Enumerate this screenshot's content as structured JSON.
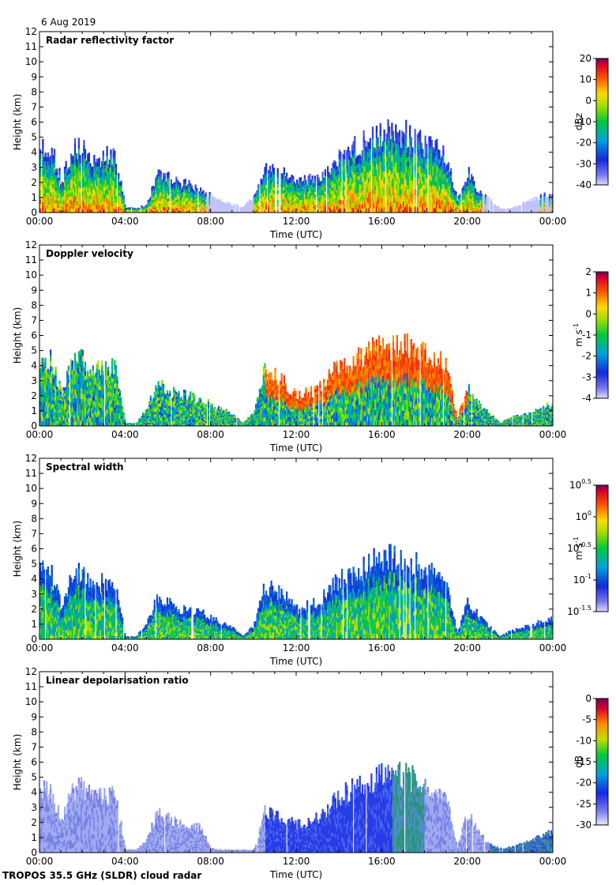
{
  "date_label": "6 Aug 2019",
  "footer_label": "TROPOS 35.5 GHz (SLDR) cloud radar",
  "chart_data": [
    {
      "type": "heatmap",
      "title": "Radar reflectivity factor",
      "xlabel": "Time (UTC)",
      "ylabel": "Height (km)",
      "xticks": [
        "00:00",
        "04:00",
        "08:00",
        "12:00",
        "16:00",
        "20:00",
        "00:00"
      ],
      "yticks": [
        "0",
        "1",
        "2",
        "3",
        "4",
        "5",
        "6",
        "7",
        "8",
        "9",
        "10",
        "11",
        "12"
      ],
      "xlim_hours": [
        0,
        24
      ],
      "ylim_km": [
        0,
        12
      ],
      "colorbar": {
        "unit": "dBz",
        "ticks": [
          "20",
          "10",
          "0",
          "-10",
          "-20",
          "-30",
          "-40"
        ]
      },
      "cloud_tops_km": [
        [
          0,
          4.8
        ],
        [
          0.5,
          4.7
        ],
        [
          1,
          2.2
        ],
        [
          1.5,
          4.5
        ],
        [
          2,
          4.6
        ],
        [
          2.5,
          3.8
        ],
        [
          3,
          4.0
        ],
        [
          3.5,
          4.3
        ],
        [
          4,
          0.4
        ],
        [
          4.5,
          0.3
        ],
        [
          5,
          0.6
        ],
        [
          5.5,
          2.9
        ],
        [
          6,
          2.6
        ],
        [
          6.5,
          2.1
        ],
        [
          7,
          2.0
        ],
        [
          7.5,
          1.6
        ],
        [
          8,
          1.2
        ],
        [
          8.5,
          0.9
        ],
        [
          9,
          0.6
        ],
        [
          9.5,
          0.4
        ],
        [
          10,
          1.2
        ],
        [
          10.5,
          3.1
        ],
        [
          11,
          2.9
        ],
        [
          11.5,
          2.8
        ],
        [
          12,
          2.2
        ],
        [
          12.5,
          2.4
        ],
        [
          13,
          2.3
        ],
        [
          13.5,
          3.0
        ],
        [
          14,
          4.0
        ],
        [
          14.5,
          4.6
        ],
        [
          15,
          4.9
        ],
        [
          15.5,
          5.4
        ],
        [
          16,
          5.6
        ],
        [
          16.5,
          5.8
        ],
        [
          17,
          5.7
        ],
        [
          17.5,
          5.2
        ],
        [
          18,
          4.8
        ],
        [
          18.5,
          4.5
        ],
        [
          19,
          3.9
        ],
        [
          19.5,
          1.0
        ],
        [
          20,
          2.9
        ],
        [
          20.5,
          1.5
        ],
        [
          21,
          1.0
        ],
        [
          21.5,
          0.3
        ],
        [
          22,
          0.3
        ],
        [
          22.5,
          0.6
        ],
        [
          23,
          0.9
        ],
        [
          23.5,
          1.2
        ],
        [
          24,
          1.5
        ]
      ]
    },
    {
      "type": "heatmap",
      "title": "Doppler velocity",
      "xlabel": "Time (UTC)",
      "ylabel": "Height (km)",
      "xticks": [
        "00:00",
        "04:00",
        "08:00",
        "12:00",
        "16:00",
        "20:00",
        "00:00"
      ],
      "yticks": [
        "0",
        "1",
        "2",
        "3",
        "4",
        "5",
        "6",
        "7",
        "8",
        "9",
        "10",
        "11",
        "12"
      ],
      "xlim_hours": [
        0,
        24
      ],
      "ylim_km": [
        0,
        12
      ],
      "colorbar": {
        "unit": "m s-1",
        "ticks": [
          "2",
          "1",
          "0",
          "-1",
          "-2",
          "-3",
          "-4"
        ]
      },
      "cloud_tops_km": [
        [
          0,
          4.9
        ],
        [
          0.5,
          4.8
        ],
        [
          1,
          2.3
        ],
        [
          1.5,
          4.6
        ],
        [
          2,
          4.7
        ],
        [
          2.5,
          3.9
        ],
        [
          3,
          4.1
        ],
        [
          3.5,
          4.3
        ],
        [
          4,
          0.2
        ],
        [
          4.5,
          0.2
        ],
        [
          5,
          1.3
        ],
        [
          5.5,
          3.0
        ],
        [
          6,
          2.6
        ],
        [
          6.5,
          2.2
        ],
        [
          7,
          2.2
        ],
        [
          7.5,
          1.9
        ],
        [
          8,
          1.5
        ],
        [
          8.5,
          1.2
        ],
        [
          9,
          0.8
        ],
        [
          9.5,
          0.2
        ],
        [
          10,
          1.0
        ],
        [
          10.5,
          4.0
        ],
        [
          11,
          3.5
        ],
        [
          11.5,
          3.0
        ],
        [
          12,
          2.1
        ],
        [
          12.5,
          2.4
        ],
        [
          13,
          2.6
        ],
        [
          13.5,
          3.5
        ],
        [
          14,
          4.3
        ],
        [
          14.5,
          4.7
        ],
        [
          15,
          5.0
        ],
        [
          15.5,
          5.5
        ],
        [
          16,
          5.7
        ],
        [
          16.5,
          5.8
        ],
        [
          17,
          5.7
        ],
        [
          17.5,
          5.4
        ],
        [
          18,
          5.0
        ],
        [
          18.5,
          4.8
        ],
        [
          19,
          4.2
        ],
        [
          19.5,
          0.5
        ],
        [
          20,
          3.0
        ],
        [
          20.5,
          1.6
        ],
        [
          21,
          0.9
        ],
        [
          21.5,
          0.2
        ],
        [
          22,
          0.6
        ],
        [
          22.5,
          0.8
        ],
        [
          23,
          1.0
        ],
        [
          23.5,
          1.3
        ],
        [
          24,
          1.6
        ]
      ]
    },
    {
      "type": "heatmap",
      "title": "Spectral width",
      "xlabel": "Time (UTC)",
      "ylabel": "Height (km)",
      "xticks": [
        "00:00",
        "04:00",
        "08:00",
        "12:00",
        "16:00",
        "20:00",
        "00:00"
      ],
      "yticks": [
        "0",
        "1",
        "2",
        "3",
        "4",
        "5",
        "6",
        "7",
        "8",
        "9",
        "10",
        "11",
        "12"
      ],
      "xlim_hours": [
        0,
        24
      ],
      "ylim_km": [
        0,
        12
      ],
      "colorbar": {
        "unit": "m s-1",
        "ticks": [
          "10^0.5",
          "10^0",
          "10^-0.5",
          "10^-1",
          "10^-1.5"
        ]
      },
      "cloud_tops_km": [
        [
          0,
          4.9
        ],
        [
          0.5,
          4.8
        ],
        [
          1,
          2.3
        ],
        [
          1.5,
          4.6
        ],
        [
          2,
          4.7
        ],
        [
          2.5,
          3.9
        ],
        [
          3,
          4.1
        ],
        [
          3.5,
          4.3
        ],
        [
          4,
          0.2
        ],
        [
          4.5,
          0.2
        ],
        [
          5,
          1.3
        ],
        [
          5.5,
          3.0
        ],
        [
          6,
          2.6
        ],
        [
          6.5,
          2.2
        ],
        [
          7,
          2.2
        ],
        [
          7.5,
          1.9
        ],
        [
          8,
          1.5
        ],
        [
          8.5,
          1.2
        ],
        [
          9,
          0.8
        ],
        [
          9.5,
          0.2
        ],
        [
          10,
          1.0
        ],
        [
          10.5,
          3.9
        ],
        [
          11,
          3.4
        ],
        [
          11.5,
          3.0
        ],
        [
          12,
          2.1
        ],
        [
          12.5,
          2.4
        ],
        [
          13,
          2.6
        ],
        [
          13.5,
          3.5
        ],
        [
          14,
          4.3
        ],
        [
          14.5,
          4.7
        ],
        [
          15,
          5.0
        ],
        [
          15.5,
          5.5
        ],
        [
          16,
          5.7
        ],
        [
          16.5,
          5.8
        ],
        [
          17,
          5.7
        ],
        [
          17.5,
          5.4
        ],
        [
          18,
          5.0
        ],
        [
          18.5,
          4.8
        ],
        [
          19,
          4.2
        ],
        [
          19.5,
          0.5
        ],
        [
          20,
          2.8
        ],
        [
          20.5,
          1.6
        ],
        [
          21,
          0.9
        ],
        [
          21.5,
          0.2
        ],
        [
          22,
          0.6
        ],
        [
          22.5,
          0.8
        ],
        [
          23,
          1.0
        ],
        [
          23.5,
          1.3
        ],
        [
          24,
          1.6
        ]
      ]
    },
    {
      "type": "heatmap",
      "title": "Linear depolarisation ratio",
      "xlabel": "Time (UTC)",
      "ylabel": "Height (km)",
      "xticks": [
        "00:00",
        "04:00",
        "08:00",
        "12:00",
        "16:00",
        "20:00",
        "00:00"
      ],
      "yticks": [
        "0",
        "1",
        "2",
        "3",
        "4",
        "5",
        "6",
        "7",
        "8",
        "9",
        "10",
        "11",
        "12"
      ],
      "xlim_hours": [
        0,
        24
      ],
      "ylim_km": [
        0,
        12
      ],
      "colorbar": {
        "unit": "dB",
        "ticks": [
          "0",
          "-5",
          "-10",
          "-15",
          "-20",
          "-25",
          "-30"
        ]
      },
      "cloud_tops_km": [
        [
          0,
          4.5
        ],
        [
          0.5,
          4.4
        ],
        [
          1,
          2.2
        ],
        [
          1.5,
          4.5
        ],
        [
          2,
          4.6
        ],
        [
          2.5,
          3.8
        ],
        [
          3,
          4.0
        ],
        [
          3.5,
          4.2
        ],
        [
          4,
          0.2
        ],
        [
          4.5,
          0.2
        ],
        [
          5,
          1.0
        ],
        [
          5.5,
          2.9
        ],
        [
          6,
          2.5
        ],
        [
          6.5,
          2.1
        ],
        [
          7,
          2.0
        ],
        [
          7.5,
          1.8
        ],
        [
          8,
          0.3
        ],
        [
          8.5,
          0.2
        ],
        [
          9,
          0.2
        ],
        [
          9.5,
          0.2
        ],
        [
          10,
          0.2
        ],
        [
          10.5,
          2.9
        ],
        [
          11,
          2.6
        ],
        [
          11.5,
          2.4
        ],
        [
          12,
          2.0
        ],
        [
          12.5,
          2.2
        ],
        [
          13,
          2.5
        ],
        [
          13.5,
          3.2
        ],
        [
          14,
          4.1
        ],
        [
          14.5,
          4.5
        ],
        [
          15,
          4.9
        ],
        [
          15.5,
          5.2
        ],
        [
          16,
          5.5
        ],
        [
          16.5,
          5.8
        ],
        [
          17,
          5.6
        ],
        [
          17.5,
          5.2
        ],
        [
          18,
          4.8
        ],
        [
          18.5,
          4.5
        ],
        [
          19,
          4.0
        ],
        [
          19.5,
          0.4
        ],
        [
          20,
          2.9
        ],
        [
          20.5,
          1.5
        ],
        [
          21,
          0.6
        ],
        [
          21.5,
          0.3
        ],
        [
          22,
          0.4
        ],
        [
          22.5,
          0.6
        ],
        [
          23,
          0.9
        ],
        [
          23.5,
          1.2
        ],
        [
          24,
          1.6
        ]
      ]
    }
  ]
}
